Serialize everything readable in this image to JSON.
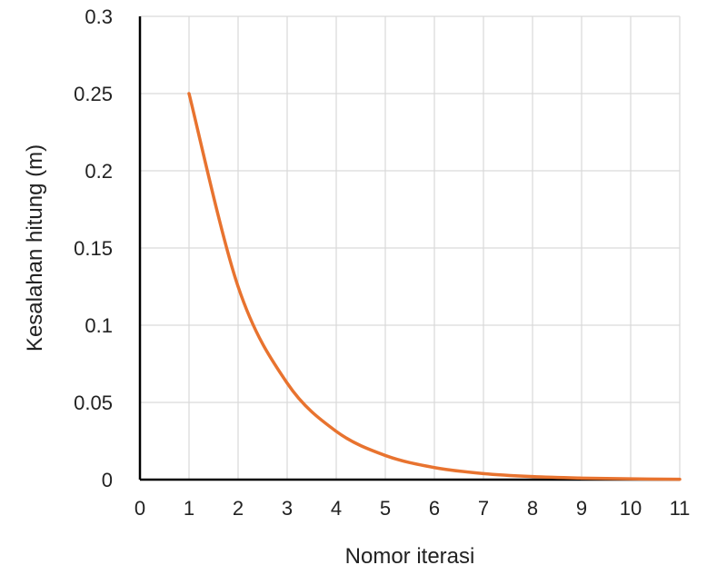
{
  "chart_data": {
    "type": "line",
    "title": "",
    "xlabel": "Nomor iterasi",
    "ylabel": "Kesalahan hitung (m)",
    "xlim": [
      0,
      11
    ],
    "ylim": [
      0,
      0.3
    ],
    "x_ticks": [
      0,
      1,
      2,
      3,
      4,
      5,
      6,
      7,
      8,
      9,
      10,
      11
    ],
    "y_ticks": [
      0,
      0.05,
      0.1,
      0.15,
      0.2,
      0.25,
      0.3
    ],
    "x_tick_labels": [
      "0",
      "1",
      "2",
      "3",
      "4",
      "5",
      "6",
      "7",
      "8",
      "9",
      "10",
      "11"
    ],
    "y_tick_labels": [
      "0",
      "0.05",
      "0.1",
      "0.15",
      "0.2",
      "0.25",
      "0.3"
    ],
    "grid": true,
    "legend": "none",
    "series": [
      {
        "color": "#E8732F",
        "x": [
          1,
          2,
          3,
          4,
          5,
          6,
          7,
          8,
          9,
          10,
          11
        ],
        "y": [
          0.25,
          0.125,
          0.0625,
          0.03125,
          0.015625,
          0.0078125,
          0.00390625,
          0.001953125,
          0.0009765625,
          0.00048828125,
          0.000244140625
        ]
      }
    ],
    "colors": {
      "grid": "#D9D9D9",
      "axis": "#000000"
    }
  }
}
